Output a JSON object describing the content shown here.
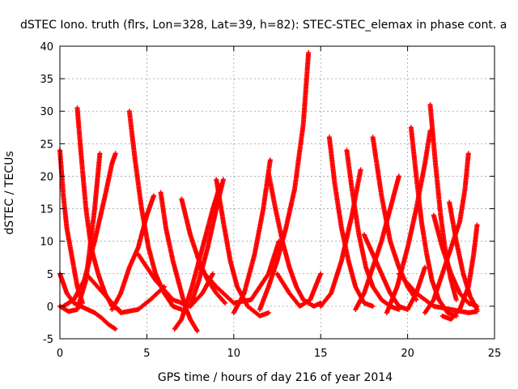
{
  "chart_data": {
    "type": "scatter",
    "title": "dSTEC Iono. truth (flrs, Lon=328, Lat=39, h=82): STEC-STEC_elemax in phase cont. a",
    "xlabel": "GPS time / hours of day 216 of year 2014",
    "ylabel": "dSTEC  / TECUs",
    "xlim": [
      0,
      25
    ],
    "ylim": [
      -5,
      40
    ],
    "xticks": [
      0,
      5,
      10,
      15,
      20,
      25
    ],
    "yticks": [
      -5,
      0,
      5,
      10,
      15,
      20,
      25,
      30,
      35,
      40
    ],
    "grid": true,
    "marker": "+",
    "color": "#ff0000",
    "series": [
      {
        "x": [
          0.0,
          0.2,
          0.4,
          0.6,
          0.8,
          1.0,
          1.3
        ],
        "y": [
          24,
          17,
          12,
          9,
          6,
          3,
          0.5
        ]
      },
      {
        "x": [
          0.0,
          0.4,
          0.8,
          1.2,
          1.6,
          2.0,
          2.4,
          2.8,
          3.2
        ],
        "y": [
          5,
          2,
          0.5,
          0,
          -0.5,
          -1,
          -1.8,
          -2.8,
          -3.5
        ]
      },
      {
        "x": [
          0.0,
          0.5,
          1.0,
          1.5,
          2.0,
          2.3
        ],
        "y": [
          0,
          -0.8,
          -0.5,
          4,
          15,
          23.5
        ]
      },
      {
        "x": [
          1.0,
          1.2,
          1.5,
          1.8,
          2.2,
          2.6,
          3.0,
          3.4
        ],
        "y": [
          30.5,
          24,
          15,
          9,
          5,
          2,
          0,
          -0.5
        ]
      },
      {
        "x": [
          0.2,
          0.8,
          1.4,
          2.0,
          2.6,
          3.0,
          3.2
        ],
        "y": [
          0,
          1,
          4,
          10,
          17,
          22,
          23.5
        ]
      },
      {
        "x": [
          1.5,
          2.5,
          3.5,
          4.5,
          5.2,
          6.0
        ],
        "y": [
          5,
          2,
          -1,
          -0.5,
          1,
          3
        ]
      },
      {
        "x": [
          4.0,
          4.3,
          4.7,
          5.1,
          5.5,
          6.0,
          6.5,
          7.0
        ],
        "y": [
          30,
          23,
          15,
          9,
          5,
          2,
          0,
          -0.5
        ]
      },
      {
        "x": [
          3.0,
          3.5,
          4.0,
          4.5,
          5.0,
          5.4
        ],
        "y": [
          -0.5,
          2,
          6,
          9,
          14,
          17
        ]
      },
      {
        "x": [
          4.5,
          5.5,
          6.5,
          7.5,
          8.2,
          8.8
        ],
        "y": [
          8,
          4,
          1,
          0,
          2,
          5
        ]
      },
      {
        "x": [
          5.8,
          6.1,
          6.5,
          6.9,
          7.2,
          7.5,
          7.9
        ],
        "y": [
          17.5,
          12,
          7,
          3,
          0,
          -2,
          -3.8
        ]
      },
      {
        "x": [
          6.6,
          7.0,
          7.6,
          8.2,
          8.8,
          9.2
        ],
        "y": [
          -3.5,
          -2,
          3,
          9,
          15,
          18.5
        ]
      },
      {
        "x": [
          7.0,
          7.5,
          8.0,
          8.5,
          9.0,
          9.5
        ],
        "y": [
          16.5,
          11,
          7,
          4,
          2,
          0.5
        ]
      },
      {
        "x": [
          7.5,
          8.0,
          8.5,
          9.0,
          9.4
        ],
        "y": [
          0,
          4,
          9,
          15,
          19.5
        ]
      },
      {
        "x": [
          9.0,
          9.4,
          9.8,
          10.2,
          10.8,
          11.5,
          12.0
        ],
        "y": [
          19.5,
          13,
          7,
          3,
          0,
          -1.5,
          -1
        ]
      },
      {
        "x": [
          8.0,
          9.0,
          10.0,
          11.0,
          12.0,
          12.6
        ],
        "y": [
          6,
          3,
          0.5,
          1,
          5,
          10
        ]
      },
      {
        "x": [
          10.0,
          10.6,
          11.2,
          11.7,
          12.1
        ],
        "y": [
          -1,
          2,
          8,
          15,
          22.5
        ]
      },
      {
        "x": [
          12.0,
          12.4,
          12.8,
          13.2,
          13.6,
          14.0,
          14.6,
          15.0
        ],
        "y": [
          20.5,
          15,
          10,
          6,
          3,
          1,
          0,
          0.5
        ]
      },
      {
        "x": [
          11.5,
          12.0,
          12.5,
          13.0,
          13.5,
          14.0,
          14.3
        ],
        "y": [
          -0.5,
          3,
          7,
          12,
          18,
          28,
          39
        ]
      },
      {
        "x": [
          12.5,
          13.2,
          13.8,
          14.4,
          15.0
        ],
        "y": [
          5,
          2,
          0,
          1,
          5
        ]
      },
      {
        "x": [
          15.5,
          15.8,
          16.2,
          16.6,
          17.0,
          17.5,
          18.0
        ],
        "y": [
          26,
          19,
          12,
          7,
          3,
          0.5,
          0
        ]
      },
      {
        "x": [
          15.0,
          15.6,
          16.2,
          16.8,
          17.3
        ],
        "y": [
          0,
          2,
          7,
          14,
          21
        ]
      },
      {
        "x": [
          16.5,
          16.8,
          17.2,
          17.6,
          18.0,
          18.5,
          19.0,
          19.5
        ],
        "y": [
          24,
          18,
          11,
          6,
          3,
          1,
          0,
          -0.5
        ]
      },
      {
        "x": [
          17.0,
          17.5,
          18.0,
          18.5,
          19.0,
          19.5
        ],
        "y": [
          -0.5,
          2,
          6,
          10,
          15,
          20
        ]
      },
      {
        "x": [
          18.0,
          18.5,
          19.0,
          19.5,
          20.0,
          20.5
        ],
        "y": [
          26,
          17,
          10,
          6,
          3,
          1
        ]
      },
      {
        "x": [
          17.5,
          18.0,
          18.5,
          19.0,
          19.5,
          20.0,
          20.5,
          21.0
        ],
        "y": [
          11,
          8,
          5,
          2,
          0,
          -0.5,
          2,
          6
        ]
      },
      {
        "x": [
          18.8,
          19.4,
          20.0,
          20.5,
          21.0,
          21.3
        ],
        "y": [
          -1,
          3,
          9,
          15,
          22,
          27
        ]
      },
      {
        "x": [
          20.2,
          20.5,
          20.8,
          21.1,
          21.4,
          21.8,
          22.3,
          22.8
        ],
        "y": [
          27.5,
          20,
          13,
          8,
          4,
          1,
          -1,
          -1.5
        ]
      },
      {
        "x": [
          21.3,
          21.6,
          21.9,
          22.2,
          22.5,
          22.8
        ],
        "y": [
          31,
          22,
          14,
          8,
          4,
          1
        ]
      },
      {
        "x": [
          21.0,
          21.5,
          22.0,
          22.5,
          23.0,
          23.3,
          23.5
        ],
        "y": [
          -1,
          1,
          5,
          9,
          13,
          18,
          23.5
        ]
      },
      {
        "x": [
          21.5,
          22.0,
          22.5,
          23.0,
          23.5,
          24.0
        ],
        "y": [
          14,
          9,
          5,
          2,
          0.5,
          0
        ]
      },
      {
        "x": [
          22.4,
          22.8,
          23.2,
          23.6,
          24.0
        ],
        "y": [
          16,
          10,
          5,
          1.5,
          -0.5
        ]
      },
      {
        "x": [
          22.0,
          22.5,
          23.0,
          23.5,
          23.8,
          24.0
        ],
        "y": [
          -1.5,
          -2,
          -0.5,
          3,
          8,
          12.5
        ]
      },
      {
        "x": [
          19.5,
          20.5,
          21.5,
          22.5,
          23.5,
          24.0
        ],
        "y": [
          5,
          2,
          0,
          -0.5,
          -1,
          -0.8
        ]
      }
    ]
  }
}
